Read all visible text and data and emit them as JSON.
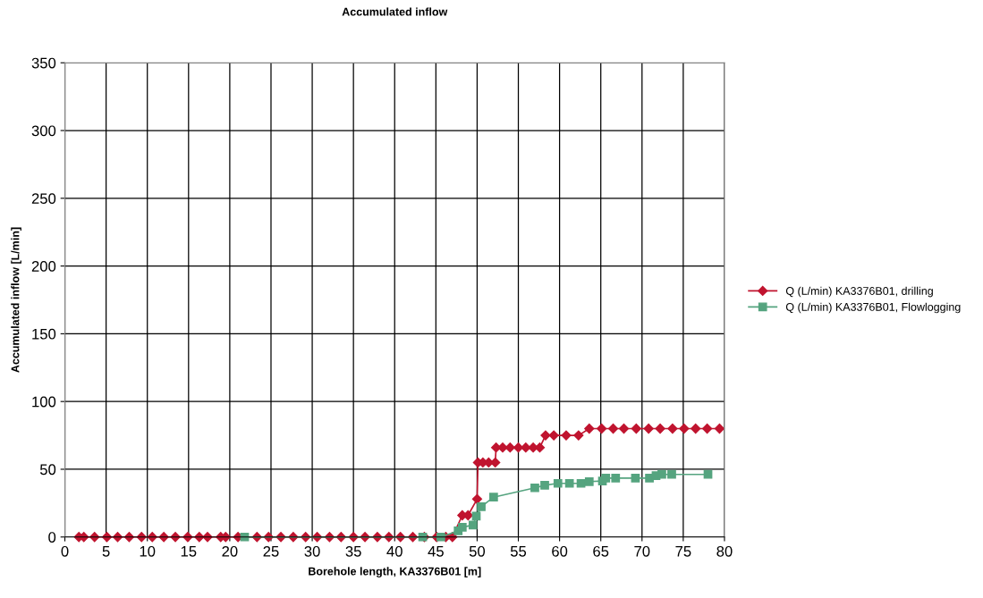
{
  "chart_data": {
    "type": "line",
    "title": "Accumulated inflow",
    "xlabel": "Borehole length, KA3376B01 [m]",
    "ylabel": "Accumulated inflow [L/min]",
    "xlim": [
      0,
      80
    ],
    "xticks": [
      0,
      5,
      10,
      15,
      20,
      25,
      30,
      35,
      40,
      45,
      50,
      55,
      60,
      65,
      70,
      75,
      80
    ],
    "ylim": [
      0,
      350
    ],
    "yticks": [
      0,
      50,
      100,
      150,
      200,
      250,
      300,
      350
    ],
    "grid": true,
    "legend": "right",
    "series": [
      {
        "name": "Q (L/min) KA3376B01, drilling",
        "color": "#c0142f",
        "marker": "diamond",
        "x": [
          1.7,
          2.3,
          3.6,
          5.1,
          6.4,
          7.8,
          9.3,
          10.6,
          12.0,
          13.4,
          14.9,
          16.3,
          17.3,
          18.9,
          19.5,
          21.0,
          23.3,
          24.7,
          26.2,
          27.7,
          29.2,
          30.6,
          32.1,
          33.5,
          35.0,
          36.4,
          37.9,
          39.3,
          40.7,
          42.2,
          43.6,
          45.1,
          46.2,
          47.0,
          48.2,
          48.9,
          50.0,
          50.1,
          50.7,
          51.4,
          52.2,
          52.3,
          53.1,
          54.0,
          55.0,
          55.9,
          56.8,
          57.6,
          58.3,
          59.3,
          60.8,
          62.3,
          63.6,
          65.1,
          66.5,
          67.8,
          69.3,
          70.8,
          72.2,
          73.7,
          75.1,
          76.5,
          77.9,
          79.4
        ],
        "values": [
          0,
          0,
          0,
          0,
          0,
          0,
          0,
          0,
          0,
          0,
          0,
          0,
          0,
          0,
          0,
          0,
          0,
          0,
          0,
          0,
          0,
          0,
          0,
          0,
          0,
          0,
          0,
          0,
          0,
          0,
          0,
          0,
          0,
          0,
          16,
          16,
          28,
          55,
          55,
          55,
          55,
          66,
          66,
          66,
          66,
          66,
          66,
          66,
          75,
          75,
          75,
          75,
          80,
          80,
          80,
          80,
          80,
          80,
          80,
          80,
          80,
          80,
          80,
          80
        ]
      },
      {
        "name": "Q (L/min) KA3376B01, Flowlogging",
        "color": "#55a47f",
        "marker": "square",
        "x": [
          21.8,
          43.4,
          45.6,
          47.7,
          48.2,
          49.5,
          49.9,
          50.5,
          52.0,
          57.0,
          58.2,
          59.8,
          61.2,
          62.6,
          63.6,
          65.2,
          65.6,
          66.8,
          69.2,
          70.9,
          71.7,
          72.4,
          73.6,
          78.0
        ],
        "values": [
          0,
          0,
          0,
          4.6,
          7.2,
          8.8,
          15.4,
          22.4,
          29.4,
          36.3,
          38.2,
          39.6,
          39.6,
          39.6,
          40.9,
          41.3,
          43.5,
          43.5,
          43.5,
          43.5,
          45.3,
          46.2,
          46.2,
          46.2
        ]
      }
    ]
  }
}
